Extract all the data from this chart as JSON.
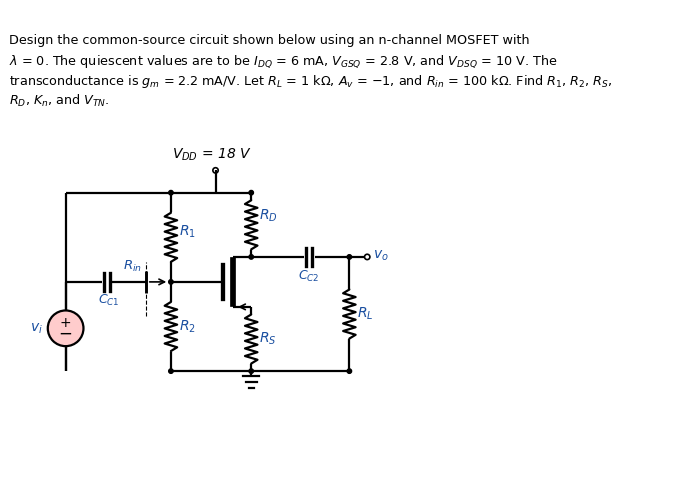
{
  "bg_color": "#ffffff",
  "line_color": "#000000",
  "label_color": "#1a4fa0",
  "text_color": "#000000",
  "vi_fill": "#ffcccc",
  "lw": 1.6,
  "fig_w": 6.96,
  "fig_h": 4.96,
  "dpi": 100
}
